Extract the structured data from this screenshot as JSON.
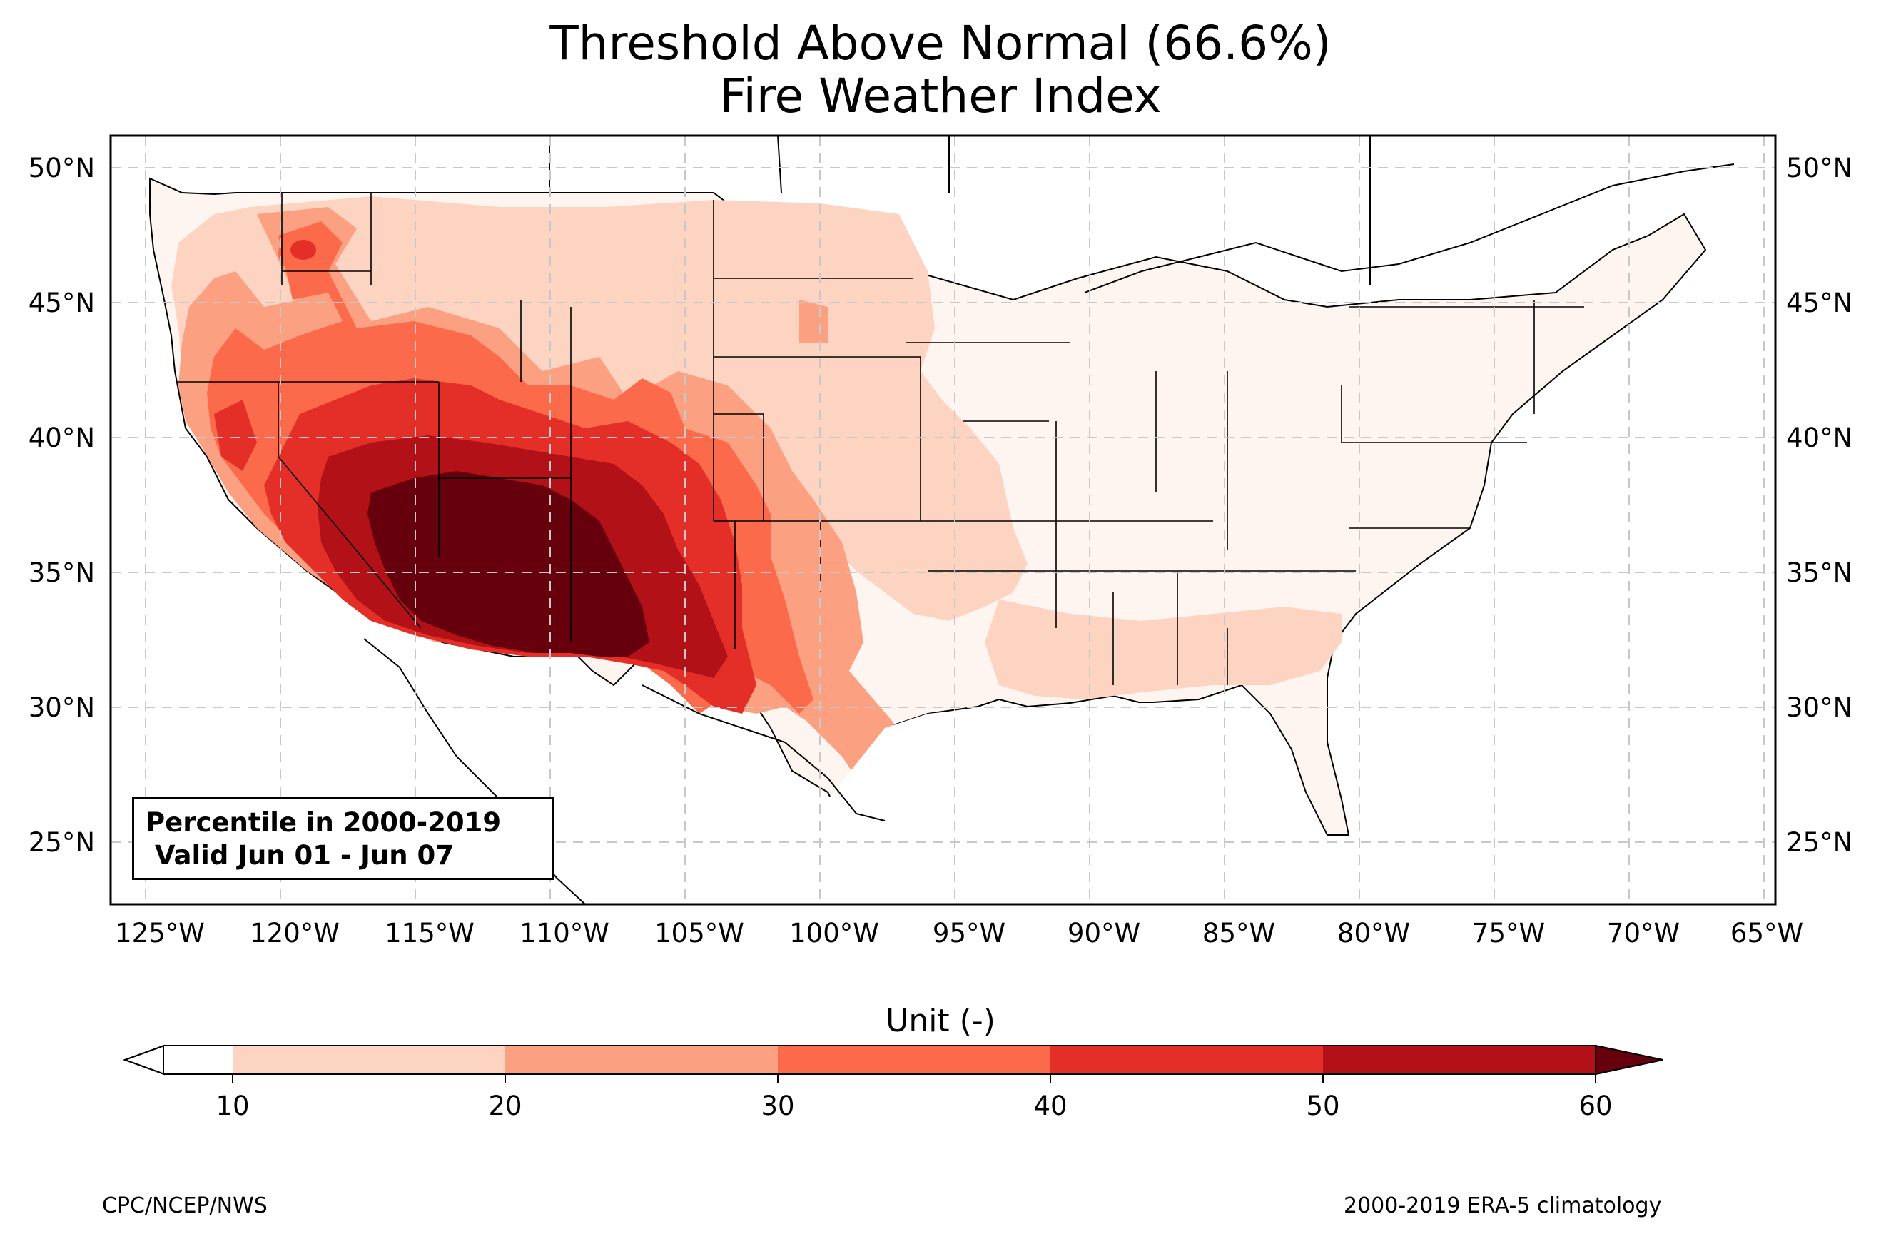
{
  "title": {
    "line1": "Threshold Above Normal (66.6%)",
    "line2": "Fire Weather Index"
  },
  "legend_box": {
    "line1": "Percentile in 2000-2019",
    "line2": " Valid Jun 01 - Jun 07"
  },
  "map": {
    "region": "Contiguous United States",
    "lon_ticks": [
      "125°W",
      "120°W",
      "115°W",
      "110°W",
      "105°W",
      "100°W",
      "95°W",
      "90°W",
      "85°W",
      "80°W",
      "75°W",
      "70°W",
      "65°W"
    ],
    "lat_ticks": [
      "50°N",
      "45°N",
      "40°N",
      "35°N",
      "30°N",
      "25°N"
    ],
    "lon_range": [
      -126.2,
      -64.8
    ],
    "lat_range": [
      22.8,
      51.2
    ],
    "colors": {
      "land_base": "#fff5f0",
      "c10_20": "#fdd4c2",
      "c20_30": "#fca082",
      "c30_40": "#fb6a4a",
      "c40_50": "#e32f27",
      "c50_60": "#b11117",
      "c60_plus": "#67000d",
      "below_10": "#ffffff"
    }
  },
  "colorbar": {
    "title": "Unit (-)",
    "ticks": [
      "10",
      "20",
      "30",
      "40",
      "50",
      "60"
    ],
    "colors": [
      "#fdd4c2",
      "#fca082",
      "#fb6a4a",
      "#e32f27",
      "#b11117"
    ],
    "under_color": "#ffffff",
    "over_color": "#67000d"
  },
  "footer": {
    "left": "CPC/NCEP/NWS",
    "right": "2000-2019 ERA-5 climatology"
  }
}
